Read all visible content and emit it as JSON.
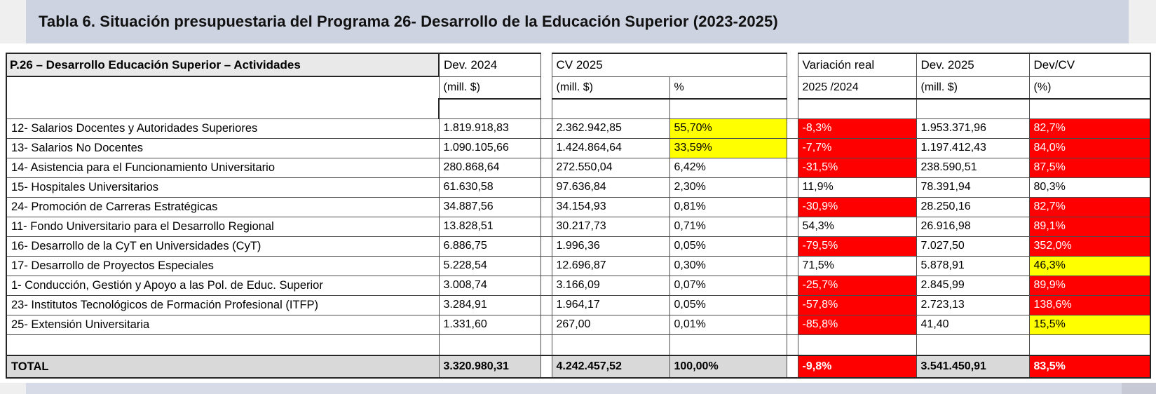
{
  "title": "Tabla 6. Situación presupuestaria del Programa 26- Desarrollo de la Educación Superior (2023-2025)",
  "colors": {
    "red": "#ff0000",
    "yellow": "#ffff00",
    "label_gray": "#e9e9e9",
    "total_gray": "#d9d9d9",
    "title_bar": "#cdd3e1",
    "page_margin": "#efefef",
    "bottom_strip": "#d6dbe7",
    "bottom_strip_end": "#c7cad4"
  },
  "table": {
    "header": {
      "activities": "P.26 – Desarrollo Educación Superior – Actividades",
      "dev2024": "Dev. 2024",
      "dev2024_sub": "(mill. $)",
      "cv2025": "CV 2025",
      "cv2025_mill_sub": "(mill. $)",
      "cv2025_pct_sub": "%",
      "variacion": "Variación real",
      "variacion_sub": "2025 /2024",
      "dev2025": "Dev. 2025",
      "dev2025_sub": "(mill. $)",
      "devcv": "Dev/CV",
      "devcv_sub": "(%)"
    },
    "rows": [
      {
        "label": "12- Salarios Docentes y Autoridades Superiores",
        "dev2024": "1.819.918,83",
        "cv_mill": "2.362.942,85",
        "cv_pct": "55,70%",
        "cv_pct_style": "yellow",
        "variacion": "-8,3%",
        "variacion_style": "red",
        "dev2025": "1.953.371,96",
        "devcv": "82,7%",
        "devcv_style": "red"
      },
      {
        "label": "13- Salarios No Docentes",
        "dev2024": "1.090.105,66",
        "cv_mill": "1.424.864,64",
        "cv_pct": "33,59%",
        "cv_pct_style": "yellow",
        "variacion": "-7,7%",
        "variacion_style": "red",
        "dev2025": "1.197.412,43",
        "devcv": "84,0%",
        "devcv_style": "red"
      },
      {
        "label": "14- Asistencia para el Funcionamiento Universitario",
        "dev2024": "280.868,64",
        "cv_mill": "272.550,04",
        "cv_pct": "6,42%",
        "cv_pct_style": "",
        "variacion": "-31,5%",
        "variacion_style": "red",
        "dev2025": "238.590,51",
        "devcv": "87,5%",
        "devcv_style": "red"
      },
      {
        "label": "15- Hospitales Universitarios",
        "dev2024": "61.630,58",
        "cv_mill": "97.636,84",
        "cv_pct": "2,30%",
        "cv_pct_style": "",
        "variacion": "11,9%",
        "variacion_style": "",
        "dev2025": "78.391,94",
        "devcv": "80,3%",
        "devcv_style": ""
      },
      {
        "label": "24- Promoción de Carreras Estratégicas",
        "dev2024": "34.887,56",
        "cv_mill": "34.154,93",
        "cv_pct": "0,81%",
        "cv_pct_style": "",
        "variacion": "-30,9%",
        "variacion_style": "red",
        "dev2025": "28.250,16",
        "devcv": "82,7%",
        "devcv_style": "red"
      },
      {
        "label": "11- Fondo Universitario para el Desarrollo Regional",
        "dev2024": "13.828,51",
        "cv_mill": "30.217,73",
        "cv_pct": "0,71%",
        "cv_pct_style": "",
        "variacion": "54,3%",
        "variacion_style": "",
        "dev2025": "26.916,98",
        "devcv": "89,1%",
        "devcv_style": "red"
      },
      {
        "label": "16- Desarrollo de la CyT en Universidades (CyT)",
        "dev2024": "6.886,75",
        "cv_mill": "1.996,36",
        "cv_pct": "0,05%",
        "cv_pct_style": "",
        "variacion": "-79,5%",
        "variacion_style": "red",
        "dev2025": "7.027,50",
        "devcv": "352,0%",
        "devcv_style": "red"
      },
      {
        "label": "17- Desarrollo de Proyectos Especiales",
        "dev2024": "5.228,54",
        "cv_mill": "12.696,87",
        "cv_pct": "0,30%",
        "cv_pct_style": "",
        "variacion": "71,5%",
        "variacion_style": "",
        "dev2025": "5.878,91",
        "devcv": "46,3%",
        "devcv_style": "yellow"
      },
      {
        "label": "1- Conducción, Gestión y Apoyo a las Pol. de Educ. Superior",
        "dev2024": "3.008,74",
        "cv_mill": "3.166,09",
        "cv_pct": "0,07%",
        "cv_pct_style": "",
        "variacion": "-25,7%",
        "variacion_style": "red",
        "dev2025": "2.845,99",
        "devcv": "89,9%",
        "devcv_style": "red"
      },
      {
        "label": "23- Institutos Tecnológicos de Formación Profesional (ITFP)",
        "dev2024": "3.284,91",
        "cv_mill": "1.964,17",
        "cv_pct": "0,05%",
        "cv_pct_style": "",
        "variacion": "-57,8%",
        "variacion_style": "red",
        "dev2025": "2.723,13",
        "devcv": "138,6%",
        "devcv_style": "red"
      },
      {
        "label": "25- Extensión Universitaria",
        "dev2024": "1.331,60",
        "cv_mill": "267,00",
        "cv_pct": "0,01%",
        "cv_pct_style": "",
        "variacion": "-85,8%",
        "variacion_style": "red",
        "dev2025": "41,40",
        "devcv": "15,5%",
        "devcv_style": "yellow"
      }
    ],
    "total": {
      "label": "TOTAL",
      "dev2024": "3.320.980,31",
      "cv_mill": "4.242.457,52",
      "cv_pct": "100,00%",
      "variacion": "-9,8%",
      "variacion_style": "red",
      "dev2025": "3.541.450,91",
      "devcv": "83,5%",
      "devcv_style": "red"
    }
  }
}
